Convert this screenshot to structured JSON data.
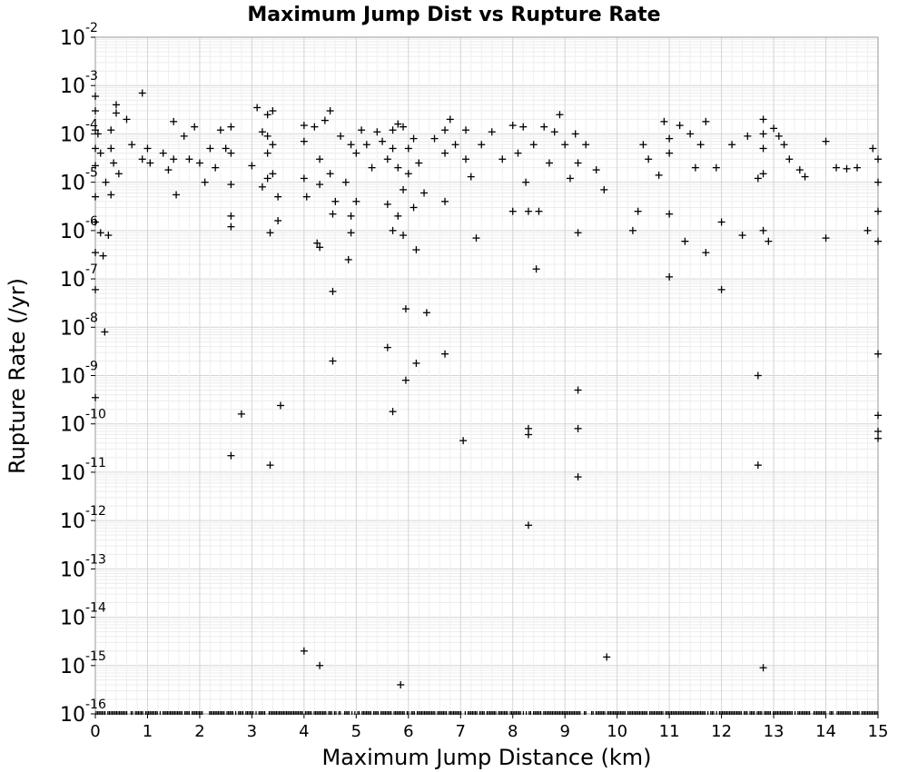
{
  "chart_data": {
    "type": "scatter",
    "title": "Maximum Jump Dist vs Rupture Rate",
    "xlabel": "Maximum Jump Distance (km)",
    "ylabel": "Rupture Rate (/yr)",
    "xlim": [
      0,
      15
    ],
    "ylim": [
      1e-16,
      0.01
    ],
    "y_scale": "log",
    "grid": true,
    "marker": "plus",
    "marker_color": "#000000",
    "x_ticks": [
      "0",
      "1",
      "2",
      "3",
      "4",
      "5",
      "6",
      "7",
      "8",
      "9",
      "10",
      "11",
      "12",
      "13",
      "14",
      "15"
    ],
    "y_ticks": [
      {
        "base": "10",
        "exp": "-2"
      },
      {
        "base": "10",
        "exp": "-3"
      },
      {
        "base": "10",
        "exp": "-4"
      },
      {
        "base": "10",
        "exp": "-5"
      },
      {
        "base": "10",
        "exp": "-6"
      },
      {
        "base": "10",
        "exp": "-7"
      },
      {
        "base": "10",
        "exp": "-8"
      },
      {
        "base": "10",
        "exp": "-9"
      },
      {
        "base": "10",
        "exp": "-10"
      },
      {
        "base": "10",
        "exp": "-11"
      },
      {
        "base": "10",
        "exp": "-12"
      },
      {
        "base": "10",
        "exp": "-13"
      },
      {
        "base": "10",
        "exp": "-14"
      },
      {
        "base": "10",
        "exp": "-15"
      },
      {
        "base": "10",
        "exp": "-16"
      }
    ],
    "points": [
      [
        0.0,
        0.0006
      ],
      [
        0.0,
        0.0003
      ],
      [
        0.0,
        0.00012
      ],
      [
        0.0,
        5e-05
      ],
      [
        0.0,
        2.2e-05
      ],
      [
        0.0,
        5e-06
      ],
      [
        0.0,
        1.5e-06
      ],
      [
        0.0,
        3.5e-07
      ],
      [
        0.0,
        6e-08
      ],
      [
        0.0,
        3.5e-10
      ],
      [
        0.05,
        0.0001
      ],
      [
        0.1,
        4e-05
      ],
      [
        0.1,
        9e-07
      ],
      [
        0.15,
        3e-07
      ],
      [
        0.18,
        8e-09
      ],
      [
        0.2,
        1e-05
      ],
      [
        0.25,
        8e-07
      ],
      [
        0.3,
        0.00012
      ],
      [
        0.3,
        5e-05
      ],
      [
        0.3,
        5.5e-06
      ],
      [
        0.35,
        2.5e-05
      ],
      [
        0.4,
        0.0004
      ],
      [
        0.4,
        0.00027
      ],
      [
        0.45,
        1.5e-05
      ],
      [
        0.6,
        0.0002
      ],
      [
        0.7,
        6e-05
      ],
      [
        0.9,
        0.0007
      ],
      [
        0.9,
        3e-05
      ],
      [
        1.0,
        5e-05
      ],
      [
        1.05,
        2.5e-05
      ],
      [
        1.3,
        4e-05
      ],
      [
        1.4,
        1.8e-05
      ],
      [
        1.5,
        0.00018
      ],
      [
        1.5,
        3e-05
      ],
      [
        1.55,
        5.5e-06
      ],
      [
        1.7,
        9e-05
      ],
      [
        1.8,
        3e-05
      ],
      [
        1.9,
        0.00014
      ],
      [
        2.0,
        2.5e-05
      ],
      [
        2.1,
        1e-05
      ],
      [
        2.2,
        5e-05
      ],
      [
        2.3,
        2e-05
      ],
      [
        2.4,
        0.00012
      ],
      [
        2.5,
        5e-05
      ],
      [
        2.6,
        0.00014
      ],
      [
        2.6,
        4e-05
      ],
      [
        2.6,
        9e-06
      ],
      [
        2.6,
        2e-06
      ],
      [
        2.6,
        1.2e-06
      ],
      [
        2.6,
        2.2e-11
      ],
      [
        2.8,
        1.6e-10
      ],
      [
        3.0,
        2.2e-05
      ],
      [
        3.1,
        0.00035
      ],
      [
        3.2,
        0.00011
      ],
      [
        3.2,
        8e-06
      ],
      [
        3.3,
        0.00025
      ],
      [
        3.3,
        9e-05
      ],
      [
        3.3,
        4e-05
      ],
      [
        3.3,
        1.2e-05
      ],
      [
        3.35,
        9e-07
      ],
      [
        3.35,
        1.4e-11
      ],
      [
        3.4,
        0.0003
      ],
      [
        3.4,
        6e-05
      ],
      [
        3.4,
        1.5e-05
      ],
      [
        3.5,
        5e-06
      ],
      [
        3.5,
        1.6e-06
      ],
      [
        3.55,
        2.4e-10
      ],
      [
        4.0,
        0.00015
      ],
      [
        4.0,
        7e-05
      ],
      [
        4.0,
        1.2e-05
      ],
      [
        4.05,
        5e-06
      ],
      [
        4.0,
        2e-15
      ],
      [
        4.2,
        0.00014
      ],
      [
        4.25,
        5.5e-07
      ],
      [
        4.3,
        3e-05
      ],
      [
        4.3,
        9e-06
      ],
      [
        4.3,
        4.5e-07
      ],
      [
        4.3,
        1e-15
      ],
      [
        4.4,
        0.00019
      ],
      [
        4.5,
        0.0003
      ],
      [
        4.5,
        1.5e-05
      ],
      [
        4.55,
        2.2e-06
      ],
      [
        4.55,
        5.5e-08
      ],
      [
        4.55,
        2e-09
      ],
      [
        4.6,
        4e-06
      ],
      [
        4.7,
        9e-05
      ],
      [
        4.8,
        1e-05
      ],
      [
        4.85,
        2.5e-07
      ],
      [
        4.9,
        6e-05
      ],
      [
        4.9,
        2e-06
      ],
      [
        4.9,
        9e-07
      ],
      [
        5.0,
        4e-05
      ],
      [
        5.0,
        4e-06
      ],
      [
        5.1,
        0.00012
      ],
      [
        5.2,
        6e-05
      ],
      [
        5.3,
        2e-05
      ],
      [
        5.4,
        0.00011
      ],
      [
        5.5,
        7e-05
      ],
      [
        5.6,
        3e-05
      ],
      [
        5.6,
        3.5e-06
      ],
      [
        5.6,
        3.8e-09
      ],
      [
        5.7,
        0.00012
      ],
      [
        5.7,
        5e-05
      ],
      [
        5.7,
        1e-06
      ],
      [
        5.7,
        1.8e-10
      ],
      [
        5.8,
        0.00016
      ],
      [
        5.8,
        2e-05
      ],
      [
        5.8,
        2e-06
      ],
      [
        5.85,
        4e-16
      ],
      [
        5.9,
        0.00014
      ],
      [
        5.9,
        7e-06
      ],
      [
        5.9,
        8e-07
      ],
      [
        5.95,
        2.4e-08
      ],
      [
        5.95,
        8e-10
      ],
      [
        6.0,
        5e-05
      ],
      [
        6.0,
        1.5e-05
      ],
      [
        6.1,
        8e-05
      ],
      [
        6.1,
        3e-06
      ],
      [
        6.15,
        4e-07
      ],
      [
        6.15,
        1.8e-09
      ],
      [
        6.2,
        2.5e-05
      ],
      [
        6.3,
        6e-06
      ],
      [
        6.35,
        2e-08
      ],
      [
        6.5,
        8e-05
      ],
      [
        6.7,
        0.00012
      ],
      [
        6.7,
        4e-05
      ],
      [
        6.7,
        2.8e-09
      ],
      [
        6.7,
        4e-06
      ],
      [
        6.8,
        0.0002
      ],
      [
        6.9,
        6e-05
      ],
      [
        7.05,
        4.5e-11
      ],
      [
        7.1,
        0.00012
      ],
      [
        7.1,
        3e-05
      ],
      [
        7.2,
        1.3e-05
      ],
      [
        7.3,
        7e-07
      ],
      [
        7.4,
        6e-05
      ],
      [
        7.6,
        0.00011
      ],
      [
        7.8,
        3e-05
      ],
      [
        8.0,
        0.00015
      ],
      [
        8.0,
        2.5e-06
      ],
      [
        8.1,
        4e-05
      ],
      [
        8.2,
        0.00014
      ],
      [
        8.25,
        1e-05
      ],
      [
        8.3,
        8e-11
      ],
      [
        8.3,
        6e-11
      ],
      [
        8.3,
        8e-13
      ],
      [
        8.3,
        2.5e-06
      ],
      [
        8.4,
        6e-05
      ],
      [
        8.45,
        1.6e-07
      ],
      [
        8.5,
        2.5e-06
      ],
      [
        8.6,
        0.00014
      ],
      [
        8.7,
        2.5e-05
      ],
      [
        8.8,
        0.00011
      ],
      [
        8.9,
        0.00025
      ],
      [
        9.0,
        6e-05
      ],
      [
        9.1,
        1.2e-05
      ],
      [
        9.2,
        0.0001
      ],
      [
        9.25,
        2.5e-05
      ],
      [
        9.25,
        9e-07
      ],
      [
        9.25,
        5e-10
      ],
      [
        9.25,
        8e-11
      ],
      [
        9.25,
        8e-12
      ],
      [
        9.4,
        6e-05
      ],
      [
        9.6,
        1.8e-05
      ],
      [
        9.75,
        7e-06
      ],
      [
        9.8,
        1.5e-15
      ],
      [
        10.3,
        1e-06
      ],
      [
        10.4,
        2.5e-06
      ],
      [
        10.5,
        6e-05
      ],
      [
        10.6,
        3e-05
      ],
      [
        10.8,
        1.4e-05
      ],
      [
        10.9,
        0.00018
      ],
      [
        11.0,
        8e-05
      ],
      [
        11.0,
        4e-05
      ],
      [
        11.0,
        2.2e-06
      ],
      [
        11.0,
        1.1e-07
      ],
      [
        11.2,
        0.00015
      ],
      [
        11.3,
        6e-07
      ],
      [
        11.4,
        0.0001
      ],
      [
        11.5,
        2e-05
      ],
      [
        11.6,
        6e-05
      ],
      [
        11.7,
        0.00018
      ],
      [
        11.7,
        3.5e-07
      ],
      [
        11.9,
        2e-05
      ],
      [
        12.0,
        1.5e-06
      ],
      [
        12.0,
        6e-08
      ],
      [
        12.2,
        6e-05
      ],
      [
        12.4,
        8e-07
      ],
      [
        12.5,
        9e-05
      ],
      [
        12.7,
        1.2e-05
      ],
      [
        12.7,
        1e-09
      ],
      [
        12.7,
        1.4e-11
      ],
      [
        12.8,
        0.0002
      ],
      [
        12.8,
        0.0001
      ],
      [
        12.8,
        5e-05
      ],
      [
        12.8,
        1.5e-05
      ],
      [
        12.8,
        1e-06
      ],
      [
        12.8,
        9e-16
      ],
      [
        12.9,
        6e-07
      ],
      [
        13.0,
        0.00013
      ],
      [
        13.1,
        9e-05
      ],
      [
        13.2,
        6e-05
      ],
      [
        13.3,
        3e-05
      ],
      [
        13.5,
        1.8e-05
      ],
      [
        13.6,
        1.3e-05
      ],
      [
        14.0,
        7e-07
      ],
      [
        14.0,
        7e-05
      ],
      [
        14.2,
        2e-05
      ],
      [
        14.4,
        1.9e-05
      ],
      [
        14.6,
        2e-05
      ],
      [
        14.8,
        1e-06
      ],
      [
        14.9,
        5e-05
      ],
      [
        15.0,
        3e-05
      ],
      [
        15.0,
        1e-05
      ],
      [
        15.0,
        2.5e-06
      ],
      [
        15.0,
        6e-07
      ],
      [
        15.0,
        2.8e-09
      ],
      [
        15.0,
        1.5e-10
      ],
      [
        15.0,
        7e-11
      ],
      [
        15.0,
        5e-11
      ]
    ]
  }
}
